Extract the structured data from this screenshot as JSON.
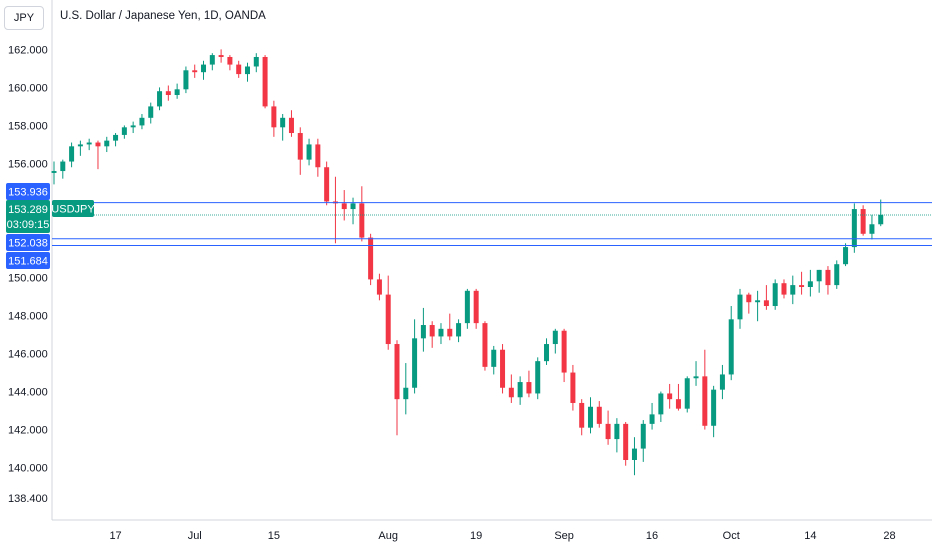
{
  "header": {
    "symbol_badge": "JPY",
    "title": "U.S. Dollar / Japanese Yen, 1D, OANDA"
  },
  "colors": {
    "up": "#089981",
    "down": "#f23645",
    "hline": "#2962ff",
    "price_line": "#089981",
    "axis_text": "#131722",
    "axis_border": "#d1d4dc"
  },
  "price_tags": {
    "level_1": "153.936",
    "last_price": "153.289",
    "countdown": "03:09:15",
    "symbol_tag": "USDJPY",
    "level_2": "152.038",
    "level_3": "151.684"
  },
  "chart_data": {
    "type": "candlestick",
    "y_tick_labels": [
      "162.000",
      "160.000",
      "158.000",
      "156.000",
      "150.000",
      "148.000",
      "146.000",
      "144.000",
      "142.000",
      "140.000",
      "138.400"
    ],
    "y_tick_values": [
      162,
      160,
      158,
      156,
      150,
      148,
      146,
      144,
      142,
      140,
      138.4
    ],
    "x_tick_labels": [
      "17",
      "Jul",
      "15",
      "Aug",
      "19",
      "Sep",
      "16",
      "Oct",
      "14",
      "28"
    ],
    "x_tick_bar_index": [
      7,
      16,
      25,
      38,
      48,
      58,
      68,
      77,
      86,
      95
    ],
    "ylim": [
      137.0,
      163.8
    ],
    "horizontal_levels": [
      153.936,
      152.038,
      151.684
    ],
    "last_price": 153.289,
    "ohlc": [
      [
        155.5,
        156.1,
        154.9,
        155.6
      ],
      [
        155.6,
        156.2,
        155.2,
        156.1
      ],
      [
        156.1,
        157.1,
        155.8,
        156.9
      ],
      [
        156.9,
        157.2,
        156.4,
        157.0
      ],
      [
        157.0,
        157.3,
        156.7,
        157.1
      ],
      [
        157.1,
        157.2,
        155.7,
        156.9
      ],
      [
        156.9,
        157.4,
        156.6,
        157.2
      ],
      [
        157.2,
        157.6,
        156.9,
        157.5
      ],
      [
        157.5,
        158.0,
        157.3,
        157.9
      ],
      [
        157.9,
        158.2,
        157.6,
        158.0
      ],
      [
        158.0,
        158.6,
        157.8,
        158.4
      ],
      [
        158.4,
        159.2,
        158.1,
        159.0
      ],
      [
        159.0,
        160.0,
        158.8,
        159.8
      ],
      [
        159.8,
        160.1,
        159.3,
        159.6
      ],
      [
        159.6,
        160.2,
        159.4,
        159.9
      ],
      [
        159.9,
        161.1,
        159.7,
        160.9
      ],
      [
        160.9,
        161.2,
        160.5,
        160.8
      ],
      [
        160.8,
        161.4,
        160.4,
        161.2
      ],
      [
        161.2,
        161.8,
        160.9,
        161.7
      ],
      [
        161.7,
        162.0,
        161.3,
        161.6
      ],
      [
        161.6,
        161.7,
        160.9,
        161.2
      ],
      [
        161.2,
        161.4,
        160.5,
        160.7
      ],
      [
        160.7,
        161.3,
        160.3,
        161.1
      ],
      [
        161.1,
        161.8,
        160.8,
        161.6
      ],
      [
        161.6,
        161.7,
        158.9,
        159.0
      ],
      [
        159.0,
        159.3,
        157.4,
        157.9
      ],
      [
        157.9,
        158.6,
        157.2,
        158.4
      ],
      [
        158.4,
        158.8,
        157.4,
        157.6
      ],
      [
        157.6,
        157.9,
        155.4,
        156.2
      ],
      [
        156.2,
        157.3,
        155.9,
        157.0
      ],
      [
        157.0,
        157.3,
        155.3,
        155.8
      ],
      [
        155.8,
        156.1,
        153.8,
        154.0
      ],
      [
        154.0,
        155.3,
        151.8,
        153.9
      ],
      [
        153.9,
        154.6,
        153.0,
        153.6
      ],
      [
        153.6,
        154.2,
        152.8,
        153.9
      ],
      [
        153.9,
        154.8,
        151.9,
        152.1
      ],
      [
        152.1,
        152.3,
        149.6,
        149.9
      ],
      [
        149.9,
        150.2,
        148.8,
        149.1
      ],
      [
        149.1,
        150.1,
        146.2,
        146.5
      ],
      [
        146.5,
        146.7,
        141.7,
        143.6
      ],
      [
        143.6,
        145.5,
        142.8,
        144.2
      ],
      [
        144.2,
        147.8,
        143.9,
        146.8
      ],
      [
        146.8,
        148.4,
        146.1,
        147.5
      ],
      [
        147.5,
        147.7,
        146.3,
        146.9
      ],
      [
        146.9,
        147.6,
        146.5,
        147.3
      ],
      [
        147.3,
        148.1,
        146.7,
        146.9
      ],
      [
        146.9,
        147.8,
        146.6,
        147.6
      ],
      [
        147.6,
        149.4,
        147.3,
        149.3
      ],
      [
        149.3,
        149.4,
        147.3,
        147.6
      ],
      [
        147.6,
        147.7,
        145.1,
        145.3
      ],
      [
        145.3,
        146.4,
        144.9,
        146.2
      ],
      [
        146.2,
        146.5,
        143.9,
        144.2
      ],
      [
        144.2,
        144.9,
        143.4,
        143.7
      ],
      [
        143.7,
        144.8,
        143.3,
        144.5
      ],
      [
        144.5,
        145.1,
        143.7,
        143.9
      ],
      [
        143.9,
        145.8,
        143.6,
        145.6
      ],
      [
        145.6,
        146.8,
        145.4,
        146.5
      ],
      [
        146.5,
        147.3,
        146.0,
        147.2
      ],
      [
        147.2,
        147.3,
        144.5,
        145.0
      ],
      [
        145.0,
        145.4,
        143.0,
        143.4
      ],
      [
        143.4,
        143.6,
        141.7,
        142.1
      ],
      [
        142.1,
        143.7,
        141.8,
        143.2
      ],
      [
        143.2,
        143.5,
        142.1,
        142.3
      ],
      [
        142.3,
        143.0,
        141.2,
        141.5
      ],
      [
        141.5,
        142.6,
        140.8,
        142.3
      ],
      [
        142.3,
        142.4,
        140.1,
        140.4
      ],
      [
        140.4,
        141.6,
        139.6,
        141.0
      ],
      [
        141.0,
        142.5,
        140.3,
        142.3
      ],
      [
        142.3,
        143.4,
        142.0,
        142.8
      ],
      [
        142.8,
        144.0,
        142.4,
        143.9
      ],
      [
        143.9,
        144.4,
        143.1,
        143.6
      ],
      [
        143.6,
        144.4,
        143.0,
        143.1
      ],
      [
        143.1,
        144.8,
        142.9,
        144.7
      ],
      [
        144.7,
        145.6,
        144.3,
        144.8
      ],
      [
        144.8,
        146.2,
        142.0,
        142.2
      ],
      [
        142.2,
        144.3,
        141.6,
        144.1
      ],
      [
        144.1,
        145.4,
        143.6,
        144.9
      ],
      [
        144.9,
        148.5,
        144.6,
        147.8
      ],
      [
        147.8,
        149.4,
        147.3,
        149.1
      ],
      [
        149.1,
        149.2,
        148.1,
        148.7
      ],
      [
        148.7,
        149.3,
        147.7,
        148.8
      ],
      [
        148.8,
        149.6,
        148.3,
        148.5
      ],
      [
        148.5,
        149.9,
        148.3,
        149.7
      ],
      [
        149.7,
        149.9,
        148.9,
        149.1
      ],
      [
        149.1,
        150.1,
        148.6,
        149.6
      ],
      [
        149.6,
        150.3,
        149.1,
        149.5
      ],
      [
        149.5,
        150.4,
        149.0,
        149.8
      ],
      [
        149.8,
        150.4,
        149.2,
        150.4
      ],
      [
        150.4,
        150.6,
        149.1,
        149.6
      ],
      [
        149.6,
        150.9,
        149.4,
        150.7
      ],
      [
        150.7,
        151.8,
        150.6,
        151.6
      ],
      [
        151.6,
        153.9,
        151.3,
        153.6
      ],
      [
        153.6,
        153.8,
        152.2,
        152.3
      ],
      [
        152.3,
        153.3,
        152.0,
        152.8
      ],
      [
        152.8,
        154.1,
        152.7,
        153.3
      ]
    ]
  }
}
